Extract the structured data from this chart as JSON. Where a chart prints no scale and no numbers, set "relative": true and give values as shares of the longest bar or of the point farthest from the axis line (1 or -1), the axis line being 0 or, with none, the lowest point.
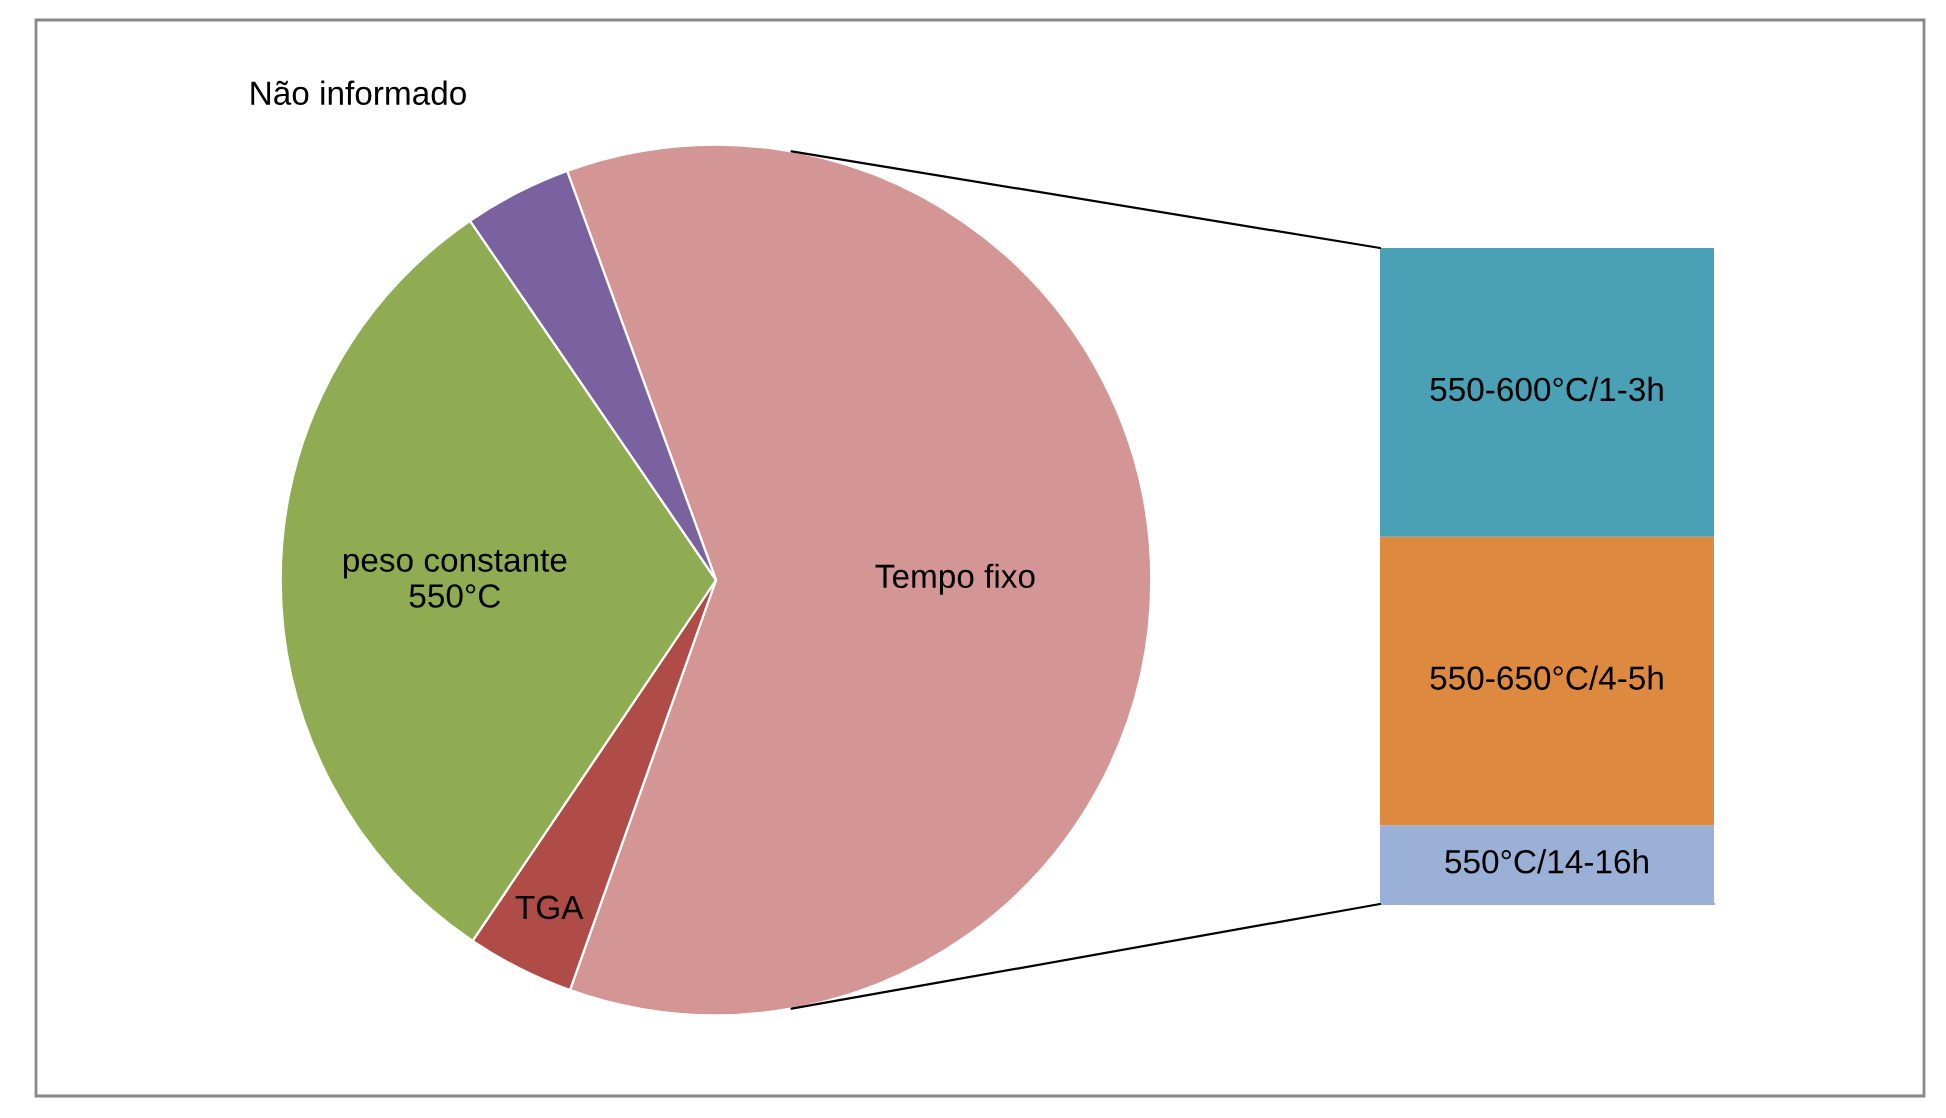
{
  "chart_data": [
    {
      "type": "pie",
      "categories": [
        "Tempo fixo",
        "TGA",
        "peso constante\n550°C",
        "Não informado"
      ],
      "values": [
        61,
        4,
        31,
        4
      ],
      "colors": [
        "#d49694",
        "#b04c48",
        "#8fac52",
        "#7a62a0"
      ],
      "legend": false
    },
    {
      "type": "bar",
      "stacked": true,
      "relative": true,
      "categories": [
        null
      ],
      "legend": false,
      "series": [
        {
          "name": "550°C/14-16h",
          "color": "#9bb0d6",
          "values": [
            0.12
          ]
        },
        {
          "name": "550-650°C/4-5h",
          "color": "#dd8a40",
          "values": [
            0.44
          ]
        },
        {
          "name": "550-600°C/1-3h",
          "color": "#4aa0b5",
          "values": [
            0.44
          ]
        }
      ]
    }
  ]
}
